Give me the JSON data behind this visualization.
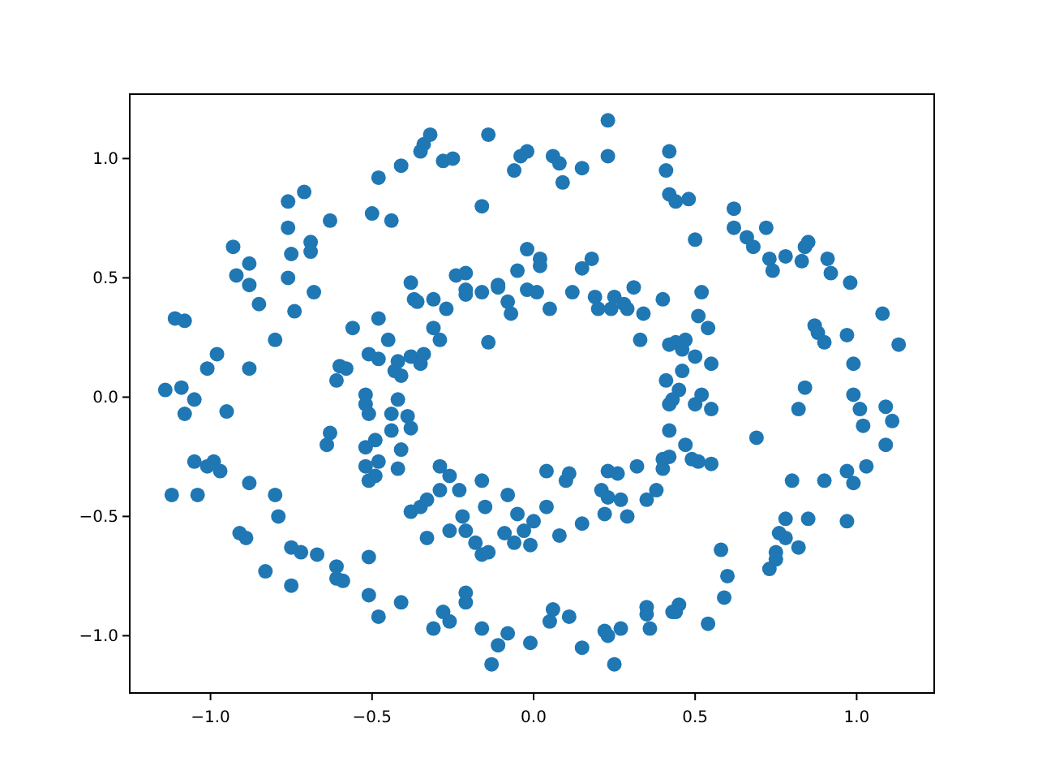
{
  "chart_data": {
    "type": "scatter",
    "marker": "circle",
    "grid": false,
    "xlim": [
      -1.25,
      1.24
    ],
    "ylim": [
      -1.24,
      1.27
    ],
    "xticks": [
      {
        "value": -1,
        "label": "−1.0"
      },
      {
        "value": -0.5,
        "label": "−0.5"
      },
      {
        "value": 0,
        "label": "0.0"
      },
      {
        "value": 0.5,
        "label": "0.5"
      },
      {
        "value": 1,
        "label": "1.0"
      }
    ],
    "yticks": [
      {
        "value": -1,
        "label": "−1.0"
      },
      {
        "value": -0.5,
        "label": "−0.5"
      },
      {
        "value": 0,
        "label": "0.0"
      },
      {
        "value": 0.5,
        "label": "0.5"
      },
      {
        "value": 1,
        "label": "1.0"
      }
    ],
    "series": [
      {
        "color": "#1f77b4",
        "x": [
          -0.48,
          -0.41,
          -0.71,
          -0.76,
          -0.5,
          -0.44,
          -0.63,
          -0.76,
          -0.69,
          -0.93,
          -0.75,
          -0.69,
          -0.88,
          -0.92,
          -0.88,
          -0.76,
          -0.68,
          -0.85,
          -0.74,
          -1.11,
          -1.08,
          -0.48,
          -0.56,
          -0.8,
          -0.45,
          -0.51,
          -0.48,
          -0.98,
          -1.01,
          -0.88,
          -0.6,
          -0.58,
          -0.61,
          -0.42,
          -0.43,
          -1.14,
          -1.09,
          -1.05,
          -0.52,
          -0.42,
          0.23,
          -0.32,
          -0.34,
          -0.35,
          -0.14,
          -0.28,
          -0.25,
          -0.02,
          -0.04,
          -0.06,
          0.06,
          0.08,
          0.09,
          0.15,
          0.23,
          0.42,
          0.41,
          -0.16,
          -0.02,
          0.02,
          0.02,
          -0.05,
          0.18,
          0.15,
          -0.24,
          -0.21,
          -0.38,
          -0.37,
          -0.31,
          -0.36,
          -0.27,
          -0.21,
          -0.21,
          -0.16,
          -0.11,
          -0.11,
          -0.08,
          -0.07,
          -0.02,
          0.01,
          0.05,
          0.12,
          0.19,
          0.2,
          0.25,
          0.24,
          0.28,
          0.29,
          0.31,
          0.34,
          0.4,
          0.33,
          -0.31,
          -0.29,
          -0.14,
          -0.38,
          -0.34,
          -0.35,
          -0.41,
          0.41,
          0.42,
          0.42,
          0.44,
          0.48,
          0.5,
          0.62,
          0.62,
          0.66,
          0.68,
          0.72,
          0.73,
          0.74,
          0.78,
          0.84,
          0.85,
          0.83,
          0.91,
          0.92,
          0.98,
          1.08,
          0.87,
          0.88,
          0.9,
          0.97,
          1.13,
          0.99,
          0.84,
          0.99,
          0.52,
          0.51,
          0.54,
          0.47,
          0.44,
          0.46,
          0.5,
          0.55,
          0.46,
          0.45,
          0.52,
          -1.08,
          -0.95,
          -1.05,
          -0.99,
          -1.01,
          -0.97,
          -1.12,
          -1.04,
          -0.88,
          -0.8,
          -0.79,
          -0.91,
          -0.89,
          -0.75,
          -0.72,
          -0.67,
          -0.83,
          -0.61,
          -0.61,
          -0.59,
          -0.75,
          -0.51,
          -0.51,
          -0.48,
          -0.41,
          -0.52,
          -0.51,
          -0.63,
          -0.64,
          -0.49,
          -0.52,
          -0.48,
          -0.52,
          -0.49,
          -0.51,
          -0.42,
          -0.44,
          -0.44,
          -0.41,
          -0.39,
          -0.38,
          -0.29,
          -0.26,
          -0.29,
          -0.23,
          -0.16,
          -0.38,
          -0.35,
          -0.33,
          -0.33,
          -0.26,
          -0.22,
          -0.21,
          -0.15,
          -0.18,
          -0.16,
          -0.14,
          -0.08,
          -0.09,
          -0.05,
          -0.06,
          -0.01,
          -0.03,
          0.0,
          0.04,
          0.04,
          0.08,
          0.1,
          0.11,
          0.15,
          0.21,
          0.23,
          0.26,
          0.22,
          0.23,
          0.27,
          0.29,
          0.32,
          0.35,
          0.38,
          0.4,
          0.4,
          0.42,
          0.42,
          0.42,
          -0.21,
          -0.21,
          -0.28,
          -0.26,
          -0.31,
          -0.16,
          -0.08,
          -0.11,
          -0.13,
          -0.01,
          0.06,
          0.05,
          0.11,
          0.15,
          0.22,
          0.23,
          0.27,
          0.25,
          0.35,
          0.35,
          0.36,
          0.43,
          0.43,
          0.5,
          0.55,
          0.47,
          0.49,
          0.51,
          0.55,
          0.69,
          0.82,
          1.01,
          1.02,
          1.09,
          1.11,
          1.09,
          1.03,
          0.97,
          0.99,
          0.9,
          0.8,
          0.85,
          0.97,
          0.78,
          0.76,
          0.78,
          0.82,
          0.75,
          0.75,
          0.73,
          0.58,
          0.6,
          0.59,
          0.44,
          0.45,
          0.54
        ],
        "values": [
          0.92,
          0.97,
          0.86,
          0.82,
          0.77,
          0.74,
          0.74,
          0.71,
          0.65,
          0.63,
          0.6,
          0.61,
          0.56,
          0.51,
          0.47,
          0.5,
          0.44,
          0.39,
          0.36,
          0.33,
          0.32,
          0.33,
          0.29,
          0.24,
          0.24,
          0.18,
          0.16,
          0.18,
          0.12,
          0.12,
          0.13,
          0.12,
          0.07,
          0.15,
          0.11,
          0.03,
          0.04,
          -0.01,
          0.01,
          -0.01,
          1.16,
          1.1,
          1.06,
          1.03,
          1.1,
          0.99,
          1.0,
          1.03,
          1.01,
          0.95,
          1.01,
          0.98,
          0.9,
          0.96,
          1.01,
          1.03,
          0.95,
          0.8,
          0.62,
          0.58,
          0.55,
          0.53,
          0.58,
          0.54,
          0.51,
          0.52,
          0.48,
          0.41,
          0.41,
          0.4,
          0.37,
          0.43,
          0.45,
          0.44,
          0.47,
          0.46,
          0.4,
          0.35,
          0.45,
          0.44,
          0.37,
          0.44,
          0.42,
          0.37,
          0.42,
          0.37,
          0.39,
          0.37,
          0.46,
          0.35,
          0.41,
          0.24,
          0.29,
          0.24,
          0.23,
          0.17,
          0.18,
          0.14,
          0.09,
          0.07,
          0.22,
          0.85,
          0.82,
          0.83,
          0.66,
          0.79,
          0.71,
          0.67,
          0.63,
          0.71,
          0.58,
          0.53,
          0.59,
          0.63,
          0.65,
          0.57,
          0.58,
          0.52,
          0.48,
          0.35,
          0.3,
          0.27,
          0.23,
          0.26,
          0.22,
          0.14,
          0.04,
          0.01,
          0.44,
          0.34,
          0.29,
          0.24,
          0.23,
          0.2,
          0.17,
          0.14,
          0.11,
          0.03,
          0.01,
          -0.07,
          -0.06,
          -0.27,
          -0.27,
          -0.29,
          -0.31,
          -0.41,
          -0.41,
          -0.36,
          -0.41,
          -0.5,
          -0.57,
          -0.59,
          -0.63,
          -0.65,
          -0.66,
          -0.73,
          -0.71,
          -0.76,
          -0.77,
          -0.79,
          -0.67,
          -0.83,
          -0.92,
          -0.86,
          -0.03,
          -0.07,
          -0.15,
          -0.2,
          -0.18,
          -0.21,
          -0.27,
          -0.29,
          -0.33,
          -0.35,
          -0.3,
          -0.14,
          -0.07,
          -0.22,
          -0.08,
          -0.13,
          -0.29,
          -0.33,
          -0.39,
          -0.39,
          -0.35,
          -0.48,
          -0.46,
          -0.43,
          -0.59,
          -0.56,
          -0.5,
          -0.56,
          -0.46,
          -0.61,
          -0.66,
          -0.65,
          -0.41,
          -0.57,
          -0.49,
          -0.61,
          -0.62,
          -0.56,
          -0.52,
          -0.46,
          -0.31,
          -0.58,
          -0.35,
          -0.32,
          -0.53,
          -0.39,
          -0.31,
          -0.32,
          -0.49,
          -0.42,
          -0.43,
          -0.5,
          -0.29,
          -0.43,
          -0.39,
          -0.26,
          -0.3,
          -0.25,
          -0.14,
          -0.03,
          -0.82,
          -0.86,
          -0.9,
          -0.94,
          -0.97,
          -0.97,
          -0.99,
          -1.04,
          -1.12,
          -1.03,
          -0.89,
          -0.94,
          -0.92,
          -1.05,
          -0.98,
          -1.0,
          -0.97,
          -1.12,
          -0.88,
          -0.91,
          -0.97,
          -0.9,
          -0.01,
          -0.03,
          -0.05,
          -0.2,
          -0.26,
          -0.27,
          -0.28,
          -0.17,
          -0.05,
          -0.05,
          -0.12,
          -0.04,
          -0.1,
          -0.2,
          -0.29,
          -0.31,
          -0.36,
          -0.35,
          -0.35,
          -0.51,
          -0.52,
          -0.51,
          -0.57,
          -0.59,
          -0.63,
          -0.65,
          -0.68,
          -0.72,
          -0.64,
          -0.75,
          -0.84,
          -0.9,
          -0.87,
          -0.95
        ]
      }
    ]
  }
}
